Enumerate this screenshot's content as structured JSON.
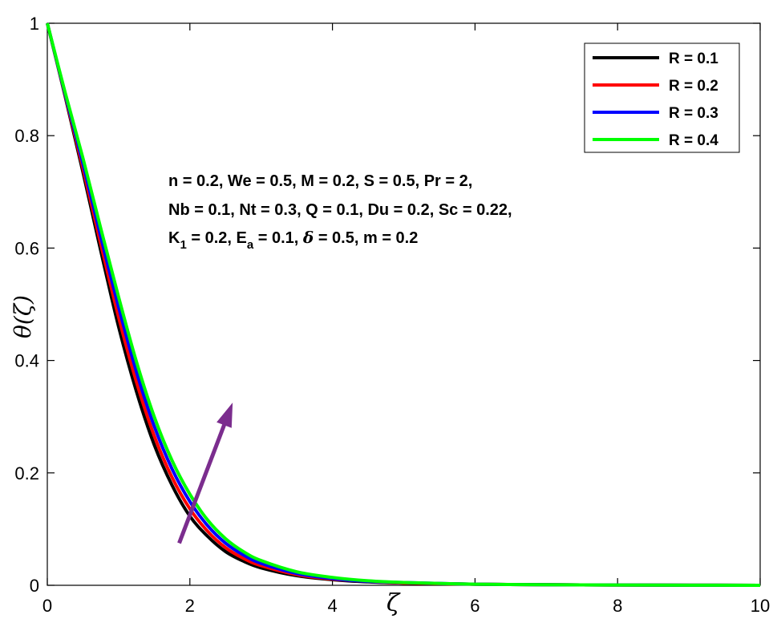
{
  "chart_data": {
    "type": "line",
    "xlabel": "ζ",
    "ylabel": "θ(ζ)",
    "xlim": [
      0,
      10
    ],
    "ylim": [
      0,
      1
    ],
    "xticks": [
      "0",
      "2",
      "4",
      "6",
      "8",
      "10"
    ],
    "yticks": [
      "0",
      "0.2",
      "0.4",
      "0.6",
      "0.8",
      "1"
    ],
    "grid": false,
    "legend_position": "top-right",
    "x": [
      0,
      0.25,
      0.5,
      0.75,
      1,
      1.25,
      1.5,
      1.75,
      2,
      2.25,
      2.5,
      2.75,
      3,
      3.5,
      4,
      4.5,
      5,
      6,
      7,
      8,
      9,
      10
    ],
    "series": [
      {
        "name": "R = 0.1",
        "color": "#000000",
        "values": [
          1,
          0.87,
          0.735,
          0.595,
          0.46,
          0.345,
          0.25,
          0.178,
          0.123,
          0.087,
          0.06,
          0.043,
          0.031,
          0.017,
          0.01,
          0.006,
          0.004,
          0.002,
          0.001,
          0.0005,
          0.0002,
          0
        ]
      },
      {
        "name": "R = 0.2",
        "color": "#ff0000",
        "values": [
          1,
          0.872,
          0.742,
          0.607,
          0.477,
          0.362,
          0.266,
          0.192,
          0.136,
          0.096,
          0.067,
          0.048,
          0.035,
          0.019,
          0.011,
          0.007,
          0.004,
          0.002,
          0.001,
          0.0005,
          0.0002,
          0
        ]
      },
      {
        "name": "R = 0.3",
        "color": "#0000ff",
        "values": [
          1,
          0.874,
          0.75,
          0.62,
          0.495,
          0.38,
          0.283,
          0.207,
          0.149,
          0.106,
          0.075,
          0.054,
          0.039,
          0.021,
          0.012,
          0.007,
          0.005,
          0.002,
          0.001,
          0.0005,
          0.0002,
          0
        ]
      },
      {
        "name": "R = 0.4",
        "color": "#00ff00",
        "values": [
          1,
          0.877,
          0.76,
          0.635,
          0.513,
          0.398,
          0.3,
          0.222,
          0.162,
          0.116,
          0.083,
          0.06,
          0.044,
          0.024,
          0.014,
          0.008,
          0.005,
          0.002,
          0.001,
          0.0005,
          0.0002,
          0
        ]
      }
    ],
    "annotation_lines": [
      "n = 0.2, We = 0.5, M = 0.2, S = 0.5,  Pr = 2,",
      "Nb = 0.1, Nt = 0.3, Q = 0.1, Du = 0.2, Sc = 0.22,",
      {
        "k_base": "K",
        "k_sub": "1",
        "k_val": " = 0.2, ",
        "e_base": "E",
        "e_sub": "a",
        "e_val": " = 0.1, ",
        "delta": "δ",
        "rest": " = 0.5, m = 0.2"
      }
    ],
    "arrow": {
      "color": "#7b2d8e",
      "from": [
        1.85,
        0.075
      ],
      "to": [
        2.6,
        0.325
      ]
    }
  }
}
